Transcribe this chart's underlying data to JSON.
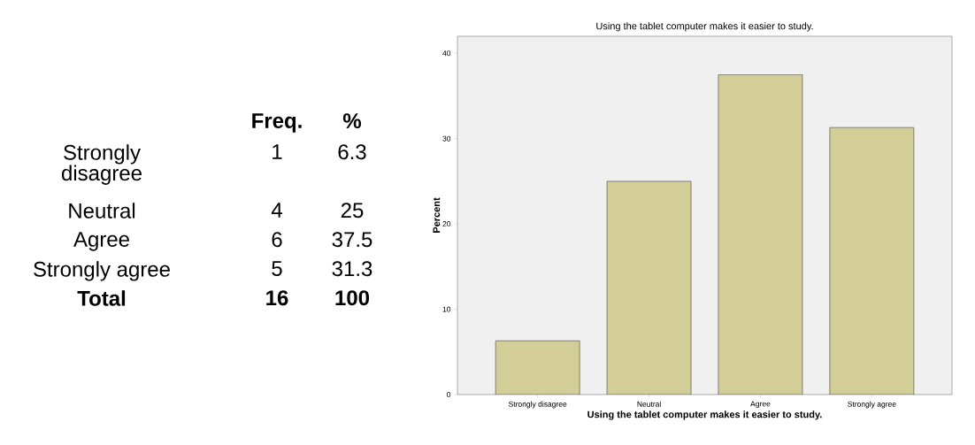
{
  "chart_data": [
    {
      "type": "other",
      "annotations": [
        "Freq.",
        "%",
        "Strongly disagree",
        "1",
        "6.3",
        "Neutral",
        "4",
        "25",
        "Agree",
        "6",
        "37.5",
        "Strongly agree",
        "5",
        "31.3",
        "Total",
        "16",
        "100"
      ]
    },
    {
      "type": "bar",
      "title": "Using the tablet computer makes it easier to study.",
      "xlabel": "Using the tablet computer makes it easier to study.",
      "ylabel": "Percent",
      "categories": [
        "Strongly disagree",
        "Neutral",
        "Agree",
        "Strongly agree"
      ],
      "values": [
        6.3,
        25,
        37.5,
        31.3
      ],
      "color": "#d3ce98",
      "ylim": [
        0,
        42
      ],
      "yticks": [
        0,
        10,
        20,
        30,
        40
      ]
    }
  ]
}
